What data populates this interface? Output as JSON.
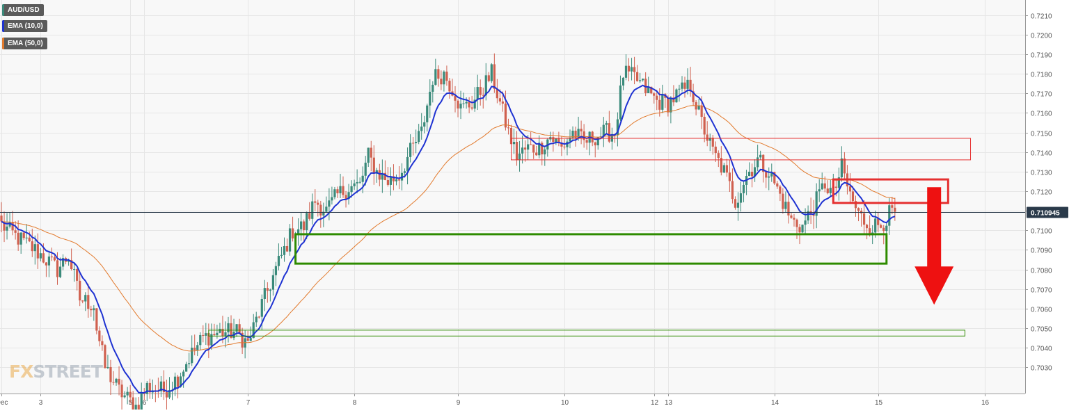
{
  "legend": {
    "symbol": "AUD/USD",
    "ema10": "EMA (10,0)",
    "ema50": "EMA (50,0)"
  },
  "watermark": {
    "fx": "FX",
    "street": "STREET"
  },
  "colors": {
    "background": "#f8f8f8",
    "grid": "#e6e6e6",
    "bull": "#3a8a7a",
    "bear": "#d0604f",
    "ema10": "#1e32d2",
    "ema50": "#e27a2d",
    "resistance": "#e53030",
    "support": "#2e8b00",
    "arrow": "#ee1111",
    "price_line": "#2a3a4a",
    "price_label_bg": "#2a3a4a"
  },
  "chart_data": {
    "type": "candlestick",
    "symbol": "AUD/USD",
    "ylim": [
      0.702,
      0.7215
    ],
    "y_ticks": [
      "0.7210",
      "0.7200",
      "0.7190",
      "0.7180",
      "0.7170",
      "0.7160",
      "0.7150",
      "0.7140",
      "0.7130",
      "0.7120",
      "0.7110",
      "0.7100",
      "0.7090",
      "0.7080",
      "0.7070",
      "0.7060",
      "0.7050",
      "0.7040",
      "0.7030"
    ],
    "x_labels": [
      {
        "label": "Dec",
        "bar": 0
      },
      {
        "label": "3",
        "bar": 14
      },
      {
        "label": "5",
        "bar": 46
      },
      {
        "label": "6",
        "bar": 51
      },
      {
        "label": "7",
        "bar": 88
      },
      {
        "label": "8",
        "bar": 126
      },
      {
        "label": "9",
        "bar": 163
      },
      {
        "label": "10",
        "bar": 201
      },
      {
        "label": "12",
        "bar": 233
      },
      {
        "label": "13",
        "bar": 238
      },
      {
        "label": "14",
        "bar": 276
      },
      {
        "label": "15",
        "bar": 313
      },
      {
        "label": "16",
        "bar": 351
      }
    ],
    "bar_count": 320,
    "right_pad_bars": 46,
    "current_price": "0.710945",
    "current_price_value": 0.710945,
    "anchors": [
      [
        0,
        0.7103
      ],
      [
        5,
        0.7097
      ],
      [
        12,
        0.709
      ],
      [
        20,
        0.708
      ],
      [
        24,
        0.7087
      ],
      [
        28,
        0.7065
      ],
      [
        33,
        0.7062
      ],
      [
        34,
        0.705
      ],
      [
        37,
        0.703
      ],
      [
        42,
        0.7018
      ],
      [
        48,
        0.701
      ],
      [
        52,
        0.702
      ],
      [
        58,
        0.7018
      ],
      [
        63,
        0.7025
      ],
      [
        67,
        0.7035
      ],
      [
        72,
        0.7045
      ],
      [
        78,
        0.7048
      ],
      [
        84,
        0.7048
      ],
      [
        88,
        0.7042
      ],
      [
        93,
        0.7062
      ],
      [
        98,
        0.708
      ],
      [
        104,
        0.71
      ],
      [
        108,
        0.7102
      ],
      [
        112,
        0.7115
      ],
      [
        116,
        0.711
      ],
      [
        120,
        0.7118
      ],
      [
        124,
        0.7122
      ],
      [
        128,
        0.7123
      ],
      [
        131,
        0.7138
      ],
      [
        134,
        0.713
      ],
      [
        138,
        0.7125
      ],
      [
        142,
        0.7128
      ],
      [
        146,
        0.714
      ],
      [
        150,
        0.715
      ],
      [
        154,
        0.7178
      ],
      [
        158,
        0.718
      ],
      [
        162,
        0.717
      ],
      [
        164,
        0.7162
      ],
      [
        168,
        0.7165
      ],
      [
        172,
        0.7173
      ],
      [
        175,
        0.718
      ],
      [
        178,
        0.7165
      ],
      [
        181,
        0.715
      ],
      [
        184,
        0.7138
      ],
      [
        188,
        0.7142
      ],
      [
        192,
        0.7142
      ],
      [
        196,
        0.7148
      ],
      [
        200,
        0.7142
      ],
      [
        204,
        0.715
      ],
      [
        208,
        0.7145
      ],
      [
        212,
        0.7148
      ],
      [
        216,
        0.715
      ],
      [
        219,
        0.715
      ],
      [
        222,
        0.718
      ],
      [
        226,
        0.7178
      ],
      [
        230,
        0.7172
      ],
      [
        234,
        0.7166
      ],
      [
        238,
        0.7165
      ],
      [
        242,
        0.717
      ],
      [
        246,
        0.7174
      ],
      [
        250,
        0.7155
      ],
      [
        254,
        0.714
      ],
      [
        258,
        0.713
      ],
      [
        262,
        0.7115
      ],
      [
        266,
        0.7128
      ],
      [
        270,
        0.7136
      ],
      [
        274,
        0.713
      ],
      [
        278,
        0.7118
      ],
      [
        282,
        0.7105
      ],
      [
        286,
        0.7102
      ],
      [
        290,
        0.7112
      ],
      [
        294,
        0.7124
      ],
      [
        297,
        0.7118
      ],
      [
        300,
        0.7132
      ],
      [
        303,
        0.7118
      ],
      [
        306,
        0.7108
      ],
      [
        310,
        0.7102
      ],
      [
        314,
        0.7103
      ],
      [
        317,
        0.7108
      ],
      [
        319,
        0.7109
      ]
    ],
    "zones": [
      {
        "name": "resistance-zone-wide",
        "x0_bar": 182,
        "x1_bar": 346,
        "y0": 0.7136,
        "y1": 0.7147,
        "stroke_width": 1,
        "color": "resistance"
      },
      {
        "name": "resistance-zone-current",
        "x0_bar": 297,
        "x1_bar": 338,
        "y0": 0.7114,
        "y1": 0.7126,
        "stroke_width": 3,
        "color": "resistance"
      },
      {
        "name": "support-zone-upper",
        "x0_bar": 105,
        "x1_bar": 316,
        "y0": 0.7083,
        "y1": 0.7098,
        "stroke_width": 3,
        "color": "support"
      },
      {
        "name": "support-zone-lower",
        "x0_bar": 74,
        "x1_bar": 344,
        "y0": 0.7046,
        "y1": 0.7049,
        "stroke_width": 1,
        "color": "support"
      }
    ],
    "arrow": {
      "bar": 333,
      "from": 0.7122,
      "to": 0.7062
    }
  }
}
